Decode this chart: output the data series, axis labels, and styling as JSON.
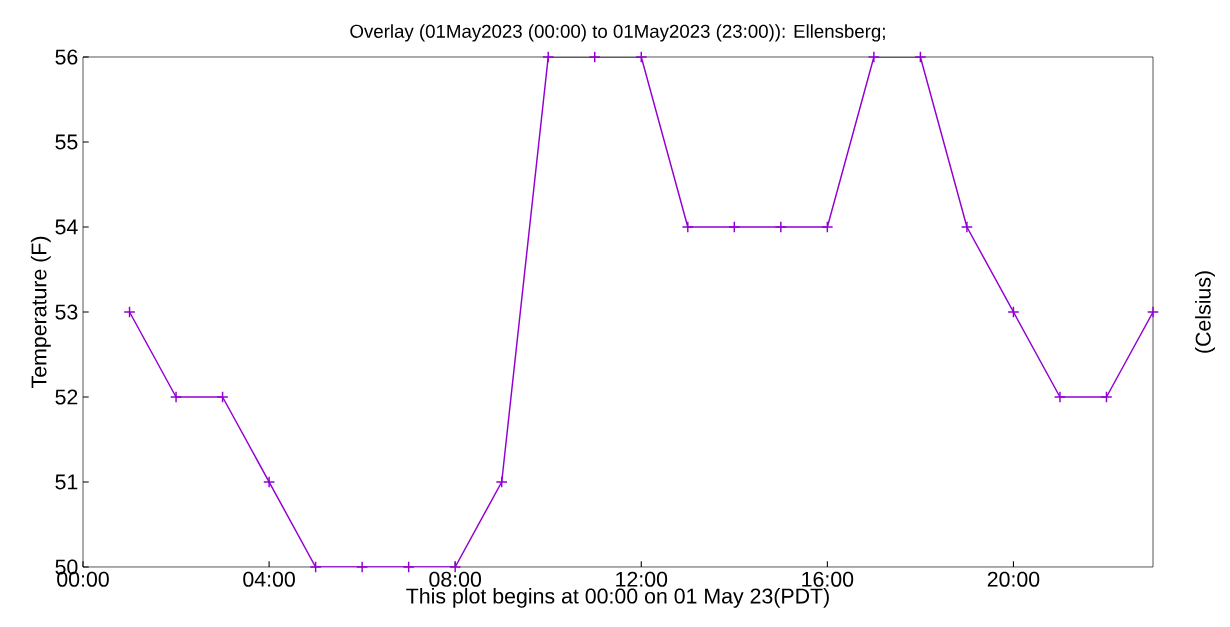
{
  "chart_data": {
    "type": "line",
    "title": "Overlay (01May2023 (00:00) to 01May2023 (23:00)): Ellensberg;",
    "xlabel": "This plot begins at 00:00 on 01 May 23(PDT)",
    "ylabel": "Temperature (F)",
    "y2label": "(Celsius)",
    "x": [
      1,
      2,
      3,
      4,
      5,
      6,
      7,
      8,
      9,
      10,
      11,
      12,
      13,
      14,
      15,
      16,
      17,
      18,
      19,
      20,
      21,
      22,
      23
    ],
    "series": [
      {
        "color": "#9400d3",
        "values": [
          53,
          52,
          52,
          51,
          50,
          50,
          50,
          50,
          51,
          56,
          56,
          56,
          54,
          54,
          54,
          54,
          56,
          56,
          54,
          53,
          52,
          52,
          53
        ]
      }
    ],
    "xlim": [
      0,
      23
    ],
    "ylim": [
      50,
      56
    ],
    "xticks": [
      {
        "value": 0,
        "label": "00:00"
      },
      {
        "value": 4,
        "label": "04:00"
      },
      {
        "value": 8,
        "label": "08:00"
      },
      {
        "value": 12,
        "label": "12:00"
      },
      {
        "value": 16,
        "label": "16:00"
      },
      {
        "value": 20,
        "label": "20:00"
      }
    ],
    "yticks": [
      50,
      51,
      52,
      53,
      54,
      55,
      56
    ],
    "marker": "cross",
    "line_style": "solid"
  }
}
